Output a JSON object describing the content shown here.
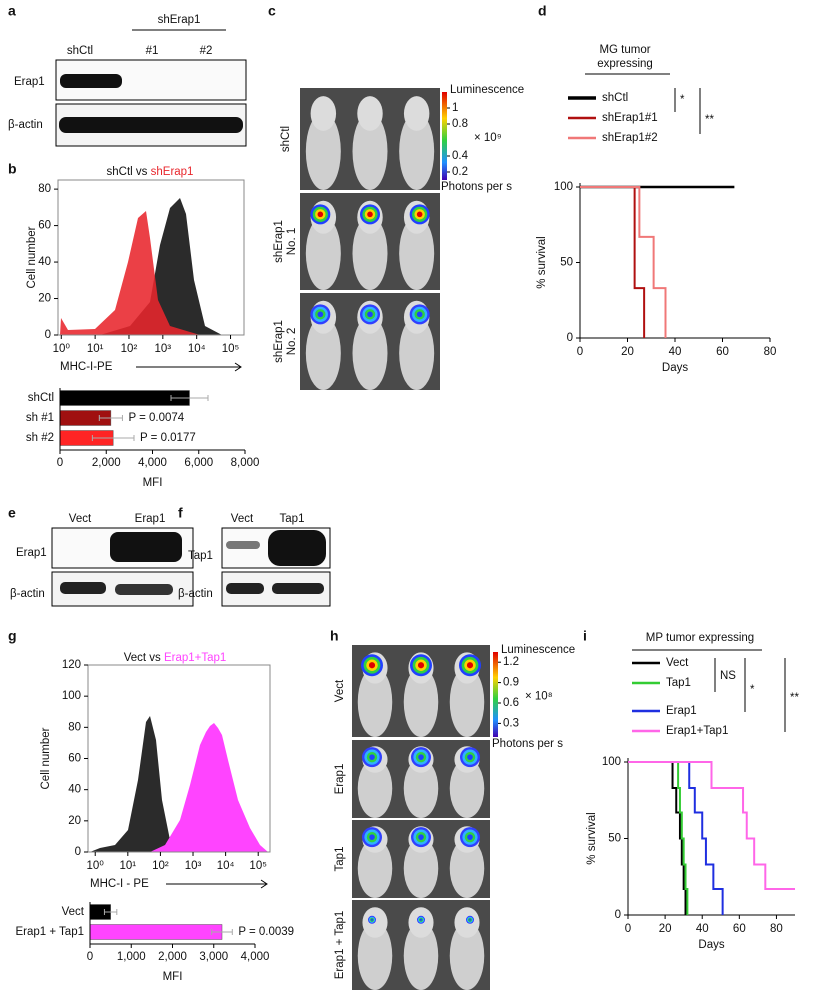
{
  "panels": {
    "a": {
      "letter": "a",
      "group_label": "shErap1",
      "lanes": [
        "shCtl",
        "#1",
        "#2"
      ],
      "blot_labels": [
        "Erap1",
        "β-actin"
      ]
    },
    "b": {
      "letter": "b",
      "title": [
        "shCtl vs ",
        "shErap1"
      ],
      "histogram": {
        "y_label": "Cell number",
        "x_label": "MHC-I-PE",
        "log_x": true,
        "xlim": [
          0.8,
          250000
        ],
        "xticks": [
          {
            "value": 1,
            "label": "10⁰"
          },
          {
            "value": 10,
            "label": "10¹"
          },
          {
            "value": 100,
            "label": "10²"
          },
          {
            "value": 1000,
            "label": "10³"
          },
          {
            "value": 10000,
            "label": "10⁴"
          },
          {
            "value": 100000,
            "label": "10⁵"
          }
        ],
        "ylim": [
          0,
          85
        ],
        "yticks": [
          0,
          20,
          40,
          60,
          80
        ]
      },
      "bars": {
        "type": "bar",
        "orientation": "horizontal",
        "categories": [
          "shCtl",
          "sh #1",
          "sh #2"
        ],
        "values": [
          5600,
          2200,
          2300
        ],
        "errors": [
          800,
          500,
          900
        ],
        "colors": [
          "#000000",
          "#a01010",
          "#ff2424"
        ],
        "annotations": [
          null,
          "P = 0.0074",
          "P = 0.0177"
        ],
        "x_label": "MFI",
        "xlim": [
          0,
          8000
        ],
        "xticks": [
          0,
          {
            "value": 2000,
            "label": "2,000"
          },
          {
            "value": 4000,
            "label": "4,000"
          },
          {
            "value": 6000,
            "label": "6,000"
          },
          {
            "value": 8000,
            "label": "8,000"
          }
        ]
      }
    },
    "c": {
      "letter": "c",
      "row_labels": [
        [
          "shCtl"
        ],
        [
          "shErap1",
          "No. 1"
        ],
        [
          "shErap1",
          "No. 2"
        ]
      ],
      "colorbar": {
        "title": "Luminescence",
        "ticks": [
          1,
          0.8,
          0.4,
          0.2
        ],
        "lim": [
          0.1,
          1.2
        ],
        "multiplier": "× 10⁹",
        "unit": "Photons per s"
      }
    },
    "d": {
      "letter": "d",
      "title": [
        "MG tumor",
        "expressing"
      ],
      "significance": [
        "*",
        "**"
      ],
      "chart": {
        "type": "step",
        "x_label": "Days",
        "y_label": "% survival",
        "xlim": [
          0,
          80
        ],
        "xticks": [
          0,
          20,
          40,
          60,
          80
        ],
        "ylim": [
          0,
          100
        ],
        "yticks": [
          0,
          50,
          100
        ],
        "series": [
          {
            "name": "shCtl",
            "color": "#000000",
            "x": [
              0,
              65
            ],
            "values": [
              100,
              100
            ]
          },
          {
            "name": "shErap1#1",
            "color": "#b01010",
            "x": [
              0,
              23,
              27
            ],
            "values": [
              100,
              33,
              0
            ]
          },
          {
            "name": "shErap1#2",
            "color": "#f07878",
            "x": [
              0,
              25,
              31,
              36
            ],
            "values": [
              100,
              67,
              33,
              0
            ]
          }
        ]
      }
    },
    "e": {
      "letter": "e",
      "lanes": [
        "Vect",
        "Erap1"
      ],
      "blot_labels": [
        "Erap1",
        "β-actin"
      ]
    },
    "f": {
      "letter": "f",
      "lanes": [
        "Vect",
        "Tap1"
      ],
      "blot_labels": [
        "Tap1",
        "β-actin"
      ]
    },
    "g": {
      "letter": "g",
      "title": [
        "Vect vs ",
        "Erap1+Tap1"
      ],
      "histogram": {
        "y_label": "Cell number",
        "x_label": "MHC-I - PE",
        "log_x": true,
        "xlim": [
          0.6,
          230000
        ],
        "xticks": [
          {
            "value": 1,
            "label": "10⁰"
          },
          {
            "value": 10,
            "label": "10¹"
          },
          {
            "value": 100,
            "label": "10²"
          },
          {
            "value": 1000,
            "label": "10³"
          },
          {
            "value": 10000,
            "label": "10⁴"
          },
          {
            "value": 100000,
            "label": "10⁵"
          }
        ],
        "ylim": [
          0,
          120
        ],
        "yticks": [
          0,
          20,
          40,
          60,
          80,
          100,
          120
        ]
      },
      "bars": {
        "type": "bar",
        "orientation": "horizontal",
        "categories": [
          "Vect",
          "Erap1 + Tap1"
        ],
        "values": [
          500,
          3200
        ],
        "errors": [
          150,
          250
        ],
        "colors": [
          "#000000",
          "#ff44ff"
        ],
        "annotations": [
          null,
          "P = 0.0039"
        ],
        "x_label": "MFI",
        "xlim": [
          0,
          4000
        ],
        "xticks": [
          0,
          {
            "value": 1000,
            "label": "1,000"
          },
          {
            "value": 2000,
            "label": "2,000"
          },
          {
            "value": 3000,
            "label": "3,000"
          },
          {
            "value": 4000,
            "label": "4,000"
          }
        ]
      }
    },
    "h": {
      "letter": "h",
      "row_labels": [
        [
          "Vect"
        ],
        [
          "Erap1"
        ],
        [
          "Tap1"
        ],
        [
          "Erap1 + Tap1"
        ]
      ],
      "colorbar": {
        "title": "Luminescence",
        "ticks": [
          1.2,
          0.9,
          0.6,
          0.3
        ],
        "lim": [
          0.1,
          1.35
        ],
        "multiplier": "× 10⁸",
        "unit": "Photons per s"
      }
    },
    "i": {
      "letter": "i",
      "title": [
        "MP tumor expressing"
      ],
      "significance": [
        "NS",
        "*",
        "**"
      ],
      "chart": {
        "type": "step",
        "x_label": "Days",
        "y_label": "% survival",
        "xlim": [
          0,
          90
        ],
        "xticks": [
          0,
          20,
          40,
          60,
          80
        ],
        "ylim": [
          0,
          100
        ],
        "yticks": [
          0,
          50,
          100
        ],
        "series": [
          {
            "name": "Vect",
            "color": "#000000",
            "x": [
              0,
              24,
              26,
              28,
              29,
              30,
              31
            ],
            "values": [
              100,
              83,
              67,
              50,
              33,
              17,
              0
            ]
          },
          {
            "name": "Tap1",
            "color": "#33cc33",
            "x": [
              0,
              27,
              28,
              29,
              30,
              31,
              32
            ],
            "values": [
              100,
              83,
              67,
              50,
              33,
              17,
              0
            ]
          },
          {
            "name": "Erap1",
            "color": "#1f2fe0",
            "x": [
              0,
              33,
              36,
              40,
              42,
              46,
              51
            ],
            "values": [
              100,
              83,
              67,
              50,
              33,
              17,
              0
            ]
          },
          {
            "name": "Erap1+Tap1",
            "color": "#ff66e8",
            "x": [
              0,
              45,
              62,
              64,
              68,
              74,
              90
            ],
            "values": [
              100,
              83,
              67,
              50,
              33,
              17,
              17
            ]
          }
        ]
      }
    }
  }
}
